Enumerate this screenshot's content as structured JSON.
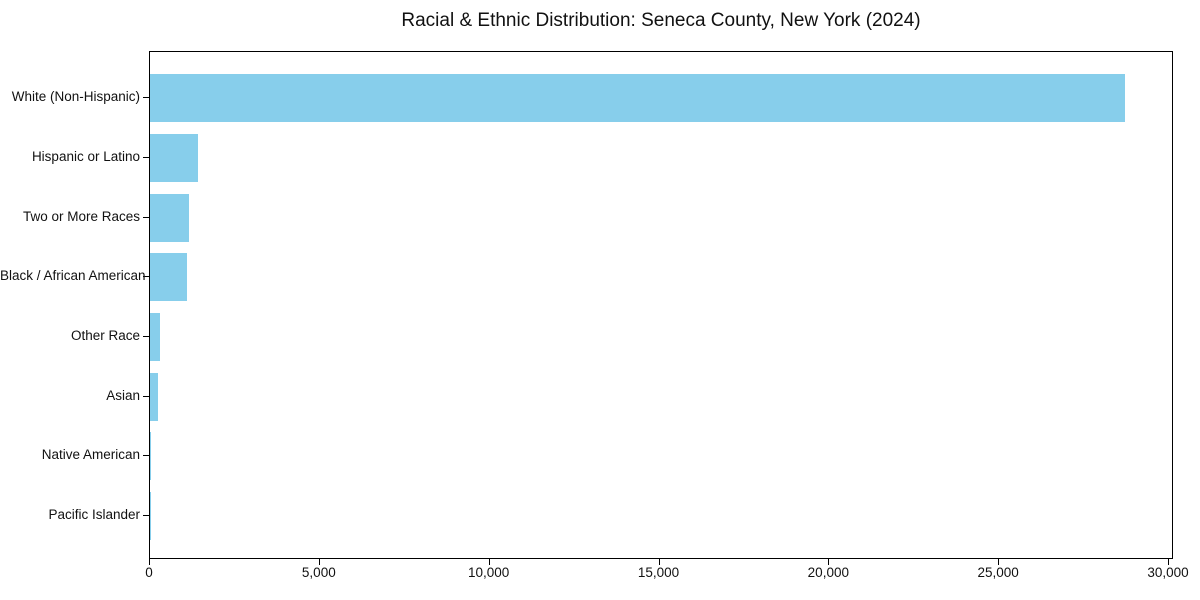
{
  "title": "Racial & Ethnic Distribution: Seneca County, New York (2024)",
  "chart_data": {
    "type": "bar",
    "orientation": "horizontal",
    "title": "Racial & Ethnic Distribution: Seneca County, New York (2024)",
    "categories": [
      "White (Non-Hispanic)",
      "Hispanic or Latino",
      "Two or More Races",
      "Black / African American",
      "Other Race",
      "Asian",
      "Native American",
      "Pacific Islander"
    ],
    "values": [
      28700,
      1400,
      1160,
      1100,
      280,
      230,
      40,
      10
    ],
    "xlabel": "",
    "ylabel": "",
    "xlim": [
      0,
      30150
    ],
    "x_ticks": [
      0,
      5000,
      10000,
      15000,
      20000,
      25000,
      30000
    ],
    "x_tick_labels": [
      "0",
      "5,000",
      "10,000",
      "15,000",
      "20,000",
      "25,000",
      "30,000"
    ],
    "bar_color": "#87CEEB",
    "text_color": "#111111",
    "axis_color": "#000000",
    "grid": false,
    "legend": "none"
  }
}
